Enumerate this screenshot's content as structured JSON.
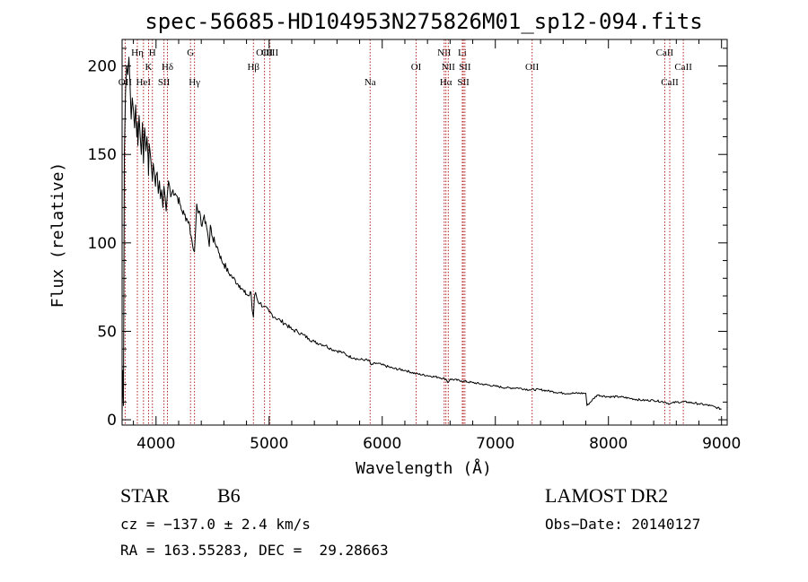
{
  "chart_data": {
    "type": "line",
    "title": "spec-56685-HD104953N275826M01_sp12-094.fits",
    "xlabel": "Wavelength (Å)",
    "ylabel": "Flux (relative)",
    "xlim": [
      3700,
      9050
    ],
    "ylim": [
      -3,
      215
    ],
    "x_ticks": [
      4000,
      5000,
      6000,
      7000,
      8000,
      9000
    ],
    "y_ticks": [
      0,
      50,
      100,
      150,
      200
    ],
    "grid": false,
    "line_color": "#000000",
    "marker_color": "#b22222",
    "series": [
      {
        "x": [
          3700,
          3705,
          3712,
          3720,
          3730,
          3740,
          3750,
          3760,
          3770,
          3780,
          3790,
          3800,
          3810,
          3820,
          3830,
          3835,
          3840,
          3850,
          3860,
          3870,
          3880,
          3889,
          3895,
          3900,
          3910,
          3920,
          3930,
          3933,
          3940,
          3950,
          3960,
          3968,
          3975,
          3985,
          3995,
          4000,
          4010,
          4020,
          4030,
          4040,
          4050,
          4060,
          4070,
          4080,
          4090,
          4101,
          4110,
          4120,
          4130,
          4150,
          4170,
          4190,
          4210,
          4230,
          4250,
          4270,
          4290,
          4310,
          4330,
          4340,
          4350,
          4360,
          4380,
          4400,
          4420,
          4440,
          4460,
          4471,
          4480,
          4500,
          4520,
          4540,
          4560,
          4580,
          4600,
          4620,
          4640,
          4660,
          4680,
          4700,
          4720,
          4740,
          4760,
          4780,
          4800,
          4820,
          4840,
          4850,
          4861,
          4870,
          4880,
          4900,
          4920,
          4950,
          5000,
          5050,
          5100,
          5150,
          5200,
          5250,
          5300,
          5350,
          5400,
          5450,
          5500,
          5550,
          5600,
          5650,
          5700,
          5750,
          5800,
          5850,
          5890,
          5900,
          5950,
          6000,
          6100,
          6200,
          6300,
          6400,
          6500,
          6563,
          6580,
          6600,
          6700,
          6800,
          6900,
          7000,
          7100,
          7200,
          7300,
          7400,
          7500,
          7600,
          7700,
          7800,
          7810,
          7900,
          8000,
          8100,
          8200,
          8300,
          8400,
          8500,
          8542,
          8600,
          8700,
          8800,
          8900,
          8950,
          9000
        ],
        "y": [
          3,
          28,
          8,
          150,
          185,
          200,
          195,
          205,
          190,
          170,
          182,
          175,
          165,
          178,
          160,
          168,
          155,
          172,
          160,
          150,
          168,
          145,
          160,
          165,
          152,
          160,
          148,
          138,
          156,
          150,
          142,
          135,
          145,
          140,
          132,
          138,
          140,
          128,
          135,
          125,
          130,
          120,
          132,
          126,
          118,
          128,
          135,
          132,
          126,
          130,
          128,
          126,
          122,
          118,
          116,
          114,
          112,
          104,
          96,
          95,
          108,
          122,
          118,
          110,
          114,
          112,
          104,
          98,
          110,
          103,
          100,
          98,
          94,
          90,
          88,
          86,
          83,
          82,
          80,
          79,
          77,
          76,
          74,
          72,
          71,
          70,
          72,
          62,
          58,
          70,
          72,
          67,
          66,
          64,
          61,
          58,
          56,
          54,
          51,
          50,
          48,
          46,
          44,
          43,
          42,
          40,
          39,
          38,
          36,
          35,
          34,
          34,
          33,
          31,
          32,
          31,
          29,
          28,
          26,
          25,
          24,
          23,
          21,
          23,
          22,
          21,
          20,
          19,
          18,
          18,
          17,
          17,
          16,
          15,
          15,
          15,
          8,
          14,
          13,
          13,
          12,
          11,
          11,
          10,
          9,
          10,
          10,
          9,
          8,
          7,
          6
        ]
      }
    ],
    "line_labels": [
      {
        "label": "OII",
        "wavelength": 3727,
        "row": 3
      },
      {
        "label": "Hη",
        "wavelength": 3835,
        "row": 1
      },
      {
        "label": "HeI",
        "wavelength": 3889,
        "row": 3
      },
      {
        "label": "K",
        "wavelength": 3934,
        "row": 2
      },
      {
        "label": "H",
        "wavelength": 3968,
        "row": 1
      },
      {
        "label": "SII",
        "wavelength": 4070,
        "row": 3
      },
      {
        "label": "Hδ",
        "wavelength": 4101,
        "row": 2
      },
      {
        "label": "G",
        "wavelength": 4305,
        "row": 1
      },
      {
        "label": "Hγ",
        "wavelength": 4340,
        "row": 3
      },
      {
        "label": "Hβ",
        "wavelength": 4861,
        "row": 2
      },
      {
        "label": "OIII",
        "wavelength": 4959,
        "row": 1
      },
      {
        "label": "OIII",
        "wavelength": 5007,
        "row": 0
      },
      {
        "label": "Na",
        "wavelength": 5893,
        "row": 3
      },
      {
        "label": "OI",
        "wavelength": 6300,
        "row": 2
      },
      {
        "label": "NII",
        "wavelength": 6548,
        "row": 1
      },
      {
        "label": "Hα",
        "wavelength": 6563,
        "row": 3
      },
      {
        "label": "NII",
        "wavelength": 6584,
        "row": 2
      },
      {
        "label": "Li",
        "wavelength": 6708,
        "row": 1
      },
      {
        "label": "SII",
        "wavelength": 6717,
        "row": 3
      },
      {
        "label": "SII",
        "wavelength": 6731,
        "row": 2
      },
      {
        "label": "OII",
        "wavelength": 7325,
        "row": 2
      },
      {
        "label": "CaII",
        "wavelength": 8498,
        "row": 1
      },
      {
        "label": "CaII",
        "wavelength": 8542,
        "row": 3
      },
      {
        "label": "CaII",
        "wavelength": 8662,
        "row": 2
      }
    ]
  },
  "info": {
    "class": "STAR",
    "subclass": "B6",
    "survey": "LAMOST DR2",
    "cz": "cz = −137.0 ± 2.4 km/s",
    "obs_date": "Obs−Date: 20140127",
    "radec": "RA = 163.55283, DEC =  29.28663"
  }
}
